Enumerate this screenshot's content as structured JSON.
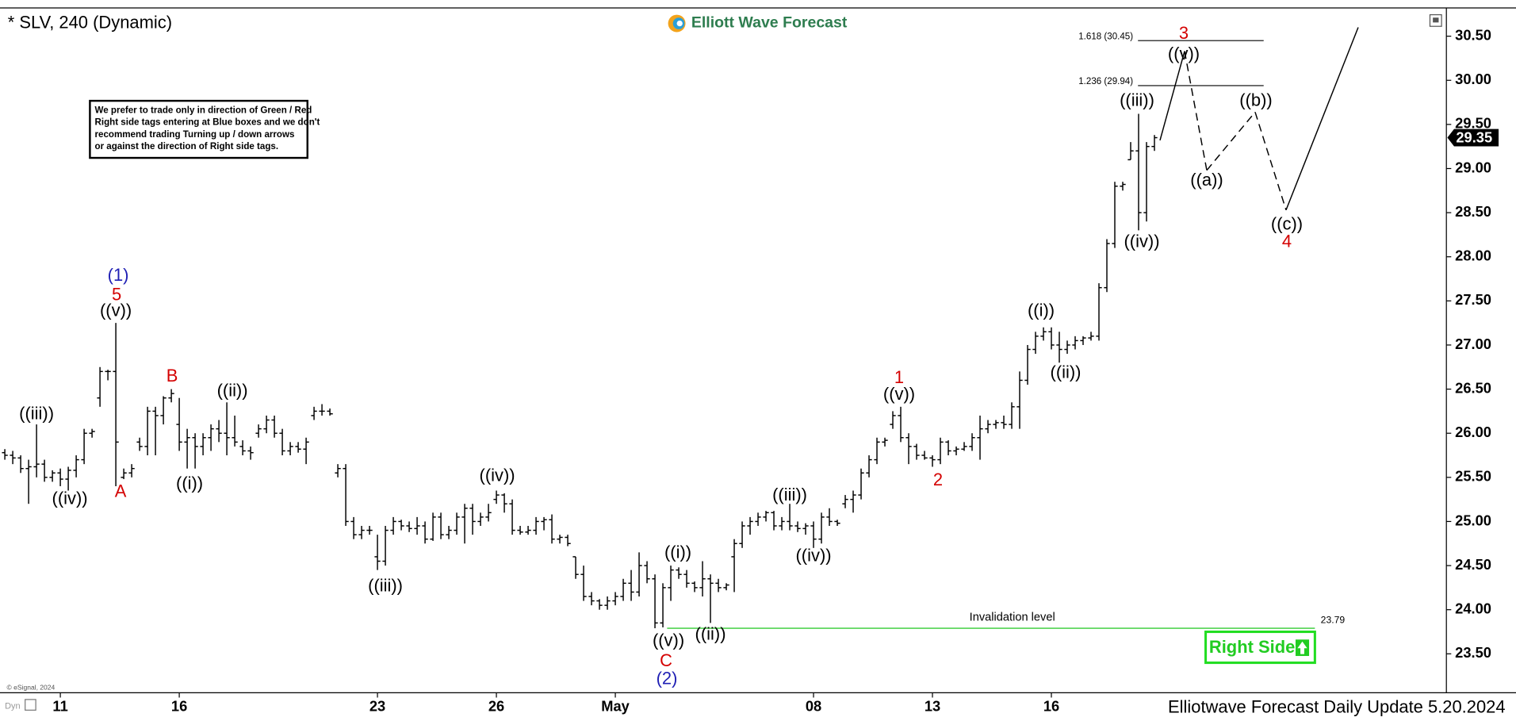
{
  "chart_data": {
    "type": "ohlc",
    "title": "* SLV, 240 (Dynamic)",
    "brand": "Elliott Wave Forecast",
    "footer": "Elliotwave Forecast Daily Update 5.20.2024",
    "copyright": "© eSignal, 2024",
    "dyn_label": "Dyn",
    "note_lines": [
      "We prefer to trade only in direction of Green / Red",
      "Right side tags entering at Blue boxes and we don't",
      "recommend trading Turning up / down arrows",
      "or against the direction of Right side tags."
    ],
    "right_side_tag": "Right Side",
    "bar_color": "#000000",
    "xlim": [
      -0.61,
      181.7
    ],
    "ylim": [
      23.07,
      30.82
    ],
    "xticks": [
      {
        "value": 7,
        "label": "11"
      },
      {
        "value": 22,
        "label": "16"
      },
      {
        "value": 47,
        "label": "23"
      },
      {
        "value": 62,
        "label": "26"
      },
      {
        "value": 77,
        "label": "May"
      },
      {
        "value": 102,
        "label": "08"
      },
      {
        "value": 117,
        "label": "13"
      },
      {
        "value": 132,
        "label": "16"
      }
    ],
    "yticks": [
      {
        "value": 23.5,
        "label": "23.50"
      },
      {
        "value": 24,
        "label": "24.00"
      },
      {
        "value": 24.5,
        "label": "24.50"
      },
      {
        "value": 25,
        "label": "25.00"
      },
      {
        "value": 25.5,
        "label": "25.50"
      },
      {
        "value": 26,
        "label": "26.00"
      },
      {
        "value": 26.5,
        "label": "26.50"
      },
      {
        "value": 27,
        "label": "27.00"
      },
      {
        "value": 27.5,
        "label": "27.50"
      },
      {
        "value": 28,
        "label": "28.00"
      },
      {
        "value": 28.5,
        "label": "28.50"
      },
      {
        "value": 29,
        "label": "29.00"
      },
      {
        "value": 29.5,
        "label": "29.50"
      },
      {
        "value": 30,
        "label": "30.00"
      },
      {
        "value": 30.5,
        "label": "30.50"
      }
    ],
    "ohlc": [
      [
        25.78,
        25.82,
        25.7,
        25.75
      ],
      [
        25.75,
        25.8,
        25.65,
        25.72
      ],
      [
        25.72,
        25.75,
        25.55,
        25.6
      ],
      [
        25.6,
        25.7,
        25.2,
        25.62
      ],
      [
        25.62,
        26.1,
        25.5,
        25.65
      ],
      [
        25.65,
        25.7,
        25.45,
        25.5
      ],
      [
        25.5,
        25.58,
        25.45,
        25.55
      ],
      [
        25.55,
        25.6,
        25.4,
        25.48
      ],
      [
        25.48,
        25.62,
        25.35,
        25.58
      ],
      [
        25.58,
        25.75,
        25.5,
        25.7
      ],
      [
        25.7,
        26.05,
        25.65,
        26.0
      ],
      [
        26.0,
        26.05,
        25.95,
        26.02
      ],
      [
        26.4,
        26.75,
        26.3,
        26.7
      ],
      [
        26.7,
        26.72,
        26.6,
        26.7
      ],
      [
        26.7,
        27.25,
        25.4,
        25.9
      ],
      [
        25.5,
        25.6,
        25.48,
        25.55
      ],
      [
        25.55,
        25.65,
        25.5,
        25.6
      ],
      [
        25.9,
        25.95,
        25.8,
        25.85
      ],
      [
        25.85,
        26.3,
        25.75,
        26.25
      ],
      [
        26.25,
        26.3,
        25.75,
        26.2
      ],
      [
        26.2,
        26.42,
        26.1,
        26.4
      ],
      [
        26.4,
        26.5,
        26.35,
        26.45
      ],
      [
        26.1,
        26.4,
        25.8,
        25.9
      ],
      [
        25.9,
        26.05,
        25.6,
        25.95
      ],
      [
        25.95,
        26.0,
        25.6,
        25.85
      ],
      [
        25.85,
        26.0,
        25.75,
        25.95
      ],
      [
        25.95,
        26.1,
        25.8,
        26.05
      ],
      [
        26.05,
        26.15,
        25.9,
        26.0
      ],
      [
        26.0,
        26.35,
        25.75,
        25.95
      ],
      [
        25.95,
        26.2,
        25.85,
        25.9
      ],
      [
        25.85,
        25.92,
        25.75,
        25.8
      ],
      [
        25.8,
        25.85,
        25.7,
        25.78
      ],
      [
        26.0,
        26.1,
        25.95,
        26.05
      ],
      [
        26.05,
        26.2,
        26.0,
        26.15
      ],
      [
        26.15,
        26.2,
        25.95,
        26.0
      ],
      [
        26.0,
        26.05,
        25.75,
        25.8
      ],
      [
        25.8,
        25.9,
        25.75,
        25.85
      ],
      [
        25.85,
        25.9,
        25.78,
        25.82
      ],
      [
        25.82,
        25.95,
        25.65,
        25.9
      ],
      [
        26.2,
        26.3,
        26.15,
        26.25
      ],
      [
        26.25,
        26.33,
        26.2,
        26.25
      ],
      [
        26.25,
        26.28,
        26.2,
        26.22
      ],
      [
        25.55,
        25.65,
        25.5,
        25.6
      ],
      [
        25.6,
        25.65,
        24.95,
        25.0
      ],
      [
        25.0,
        25.05,
        24.8,
        24.85
      ],
      [
        24.85,
        24.95,
        24.8,
        24.9
      ],
      [
        24.9,
        24.95,
        24.85,
        24.9
      ],
      [
        24.6,
        24.85,
        24.45,
        24.55
      ],
      [
        24.55,
        24.95,
        24.5,
        24.9
      ],
      [
        24.9,
        25.05,
        24.85,
        25.0
      ],
      [
        25.0,
        25.02,
        24.9,
        24.95
      ],
      [
        24.95,
        25.0,
        24.88,
        24.92
      ],
      [
        24.92,
        25.05,
        24.85,
        24.95
      ],
      [
        24.95,
        25.0,
        24.75,
        24.8
      ],
      [
        24.8,
        25.1,
        24.78,
        25.05
      ],
      [
        25.05,
        25.1,
        24.8,
        24.85
      ],
      [
        24.85,
        24.95,
        24.8,
        24.9
      ],
      [
        24.9,
        25.1,
        24.85,
        25.05
      ],
      [
        25.05,
        25.2,
        24.75,
        25.15
      ],
      [
        25.15,
        25.2,
        24.85,
        25.0
      ],
      [
        25.0,
        25.1,
        24.95,
        25.05
      ],
      [
        25.05,
        25.2,
        25.0,
        25.1
      ],
      [
        25.25,
        25.35,
        25.2,
        25.3
      ],
      [
        25.3,
        25.32,
        25.1,
        25.2
      ],
      [
        25.2,
        25.25,
        24.85,
        24.9
      ],
      [
        24.9,
        24.95,
        24.85,
        24.88
      ],
      [
        24.88,
        24.95,
        24.85,
        24.9
      ],
      [
        24.9,
        25.05,
        24.85,
        25.0
      ],
      [
        25.0,
        25.05,
        24.9,
        25.02
      ],
      [
        25.02,
        25.08,
        24.75,
        24.8
      ],
      [
        24.8,
        24.85,
        24.75,
        24.82
      ],
      [
        24.82,
        24.85,
        24.72,
        24.75
      ],
      [
        24.6,
        24.6,
        24.35,
        24.4
      ],
      [
        24.4,
        24.5,
        24.1,
        24.15
      ],
      [
        24.15,
        24.2,
        24.05,
        24.1
      ],
      [
        24.1,
        24.12,
        24.0,
        24.05
      ],
      [
        24.05,
        24.15,
        24.0,
        24.1
      ],
      [
        24.1,
        24.2,
        24.05,
        24.15
      ],
      [
        24.15,
        24.35,
        24.1,
        24.3
      ],
      [
        24.3,
        24.45,
        24.1,
        24.2
      ],
      [
        24.2,
        24.65,
        24.15,
        24.5
      ],
      [
        24.5,
        24.55,
        24.3,
        24.35
      ],
      [
        24.35,
        24.4,
        23.79,
        23.85
      ],
      [
        23.85,
        24.3,
        23.8,
        24.25
      ],
      [
        24.25,
        24.5,
        24.1,
        24.45
      ],
      [
        24.45,
        24.48,
        24.35,
        24.4
      ],
      [
        24.4,
        24.45,
        24.25,
        24.3
      ],
      [
        24.3,
        24.32,
        24.2,
        24.25
      ],
      [
        24.25,
        24.55,
        24.15,
        24.35
      ],
      [
        24.35,
        24.4,
        23.85,
        24.3
      ],
      [
        24.3,
        24.35,
        24.2,
        24.25
      ],
      [
        24.25,
        24.3,
        24.22,
        24.28
      ],
      [
        24.6,
        24.8,
        24.2,
        24.75
      ],
      [
        24.75,
        25.0,
        24.7,
        24.95
      ],
      [
        24.95,
        25.05,
        24.85,
        25.0
      ],
      [
        25.0,
        25.1,
        24.95,
        25.05
      ],
      [
        25.05,
        25.12,
        25.0,
        25.1
      ],
      [
        25.1,
        25.12,
        24.9,
        24.95
      ],
      [
        24.95,
        25.05,
        24.9,
        25.0
      ],
      [
        25.0,
        25.2,
        24.9,
        24.95
      ],
      [
        24.95,
        25.0,
        24.88,
        24.92
      ],
      [
        24.92,
        24.98,
        24.85,
        24.95
      ],
      [
        24.95,
        25.0,
        24.7,
        24.8
      ],
      [
        24.8,
        25.1,
        24.75,
        25.05
      ],
      [
        25.05,
        25.15,
        24.95,
        25.0
      ],
      [
        25.0,
        25.02,
        24.95,
        24.98
      ],
      [
        25.2,
        25.3,
        25.15,
        25.25
      ],
      [
        25.25,
        25.35,
        25.1,
        25.3
      ],
      [
        25.3,
        25.6,
        25.25,
        25.55
      ],
      [
        25.55,
        25.75,
        25.5,
        25.7
      ],
      [
        25.7,
        25.95,
        25.65,
        25.9
      ],
      [
        25.9,
        25.95,
        25.85,
        25.92
      ],
      [
        26.1,
        26.25,
        26.05,
        26.2
      ],
      [
        26.2,
        26.3,
        25.9,
        25.95
      ],
      [
        25.95,
        26.0,
        25.65,
        25.85
      ],
      [
        25.85,
        25.88,
        25.7,
        25.75
      ],
      [
        25.75,
        25.8,
        25.7,
        25.72
      ],
      [
        25.72,
        25.75,
        25.62,
        25.7
      ],
      [
        25.7,
        25.95,
        25.65,
        25.9
      ],
      [
        25.9,
        25.92,
        25.75,
        25.8
      ],
      [
        25.8,
        25.85,
        25.75,
        25.82
      ],
      [
        25.82,
        25.9,
        25.8,
        25.85
      ],
      [
        25.85,
        26.0,
        25.8,
        25.95
      ],
      [
        25.95,
        26.2,
        25.7,
        26.05
      ],
      [
        26.05,
        26.15,
        26.0,
        26.1
      ],
      [
        26.1,
        26.15,
        26.05,
        26.12
      ],
      [
        26.12,
        26.2,
        26.05,
        26.1
      ],
      [
        26.1,
        26.35,
        26.05,
        26.3
      ],
      [
        26.3,
        26.7,
        26.05,
        26.6
      ],
      [
        26.6,
        27.0,
        26.55,
        26.95
      ],
      [
        26.95,
        27.15,
        26.9,
        27.1
      ],
      [
        27.1,
        27.2,
        27.05,
        27.15
      ],
      [
        27.15,
        27.2,
        26.95,
        27.0
      ],
      [
        27.0,
        27.15,
        26.8,
        26.95
      ],
      [
        26.95,
        27.05,
        26.9,
        27.0
      ],
      [
        27.0,
        27.1,
        26.95,
        27.05
      ],
      [
        27.05,
        27.1,
        27.0,
        27.08
      ],
      [
        27.08,
        27.15,
        27.05,
        27.1
      ],
      [
        27.1,
        27.7,
        27.05,
        27.65
      ],
      [
        27.65,
        28.2,
        27.6,
        28.15
      ],
      [
        28.15,
        28.85,
        28.1,
        28.8
      ],
      [
        28.8,
        28.85,
        28.75,
        28.82
      ],
      [
        29.1,
        29.3,
        29.1,
        29.2
      ],
      [
        29.2,
        29.62,
        28.3,
        28.5
      ],
      [
        28.5,
        29.3,
        28.4,
        29.25
      ],
      [
        29.25,
        29.38,
        29.2,
        29.35
      ]
    ],
    "fib_levels": [
      {
        "label": "1.618 (30.45)",
        "value": 30.45
      },
      {
        "label": "1.236 (29.94)",
        "value": 29.94
      }
    ],
    "invalidation": {
      "label": "Invalidation level",
      "value": 23.79,
      "color": "#33cc33"
    },
    "projection": {
      "x": [
        145.7,
        148.8,
        151.6,
        157.7,
        161.6,
        170.7
      ],
      "y": [
        29.32,
        30.33,
        28.98,
        29.64,
        28.53,
        30.6
      ],
      "dashed": [
        false,
        true,
        true,
        true,
        false
      ]
    },
    "waves": [
      {
        "text": "((iii))",
        "x": 4.0,
        "y": 26.21,
        "color": "#000000"
      },
      {
        "text": "((iv))",
        "x": 8.2,
        "y": 25.25,
        "color": "#000000"
      },
      {
        "text": "(1)",
        "x": 14.3,
        "y": 27.78,
        "color": "#1f1fb4"
      },
      {
        "text": "5",
        "x": 14.1,
        "y": 27.56,
        "color": "#d40000"
      },
      {
        "text": "((v))",
        "x": 14.0,
        "y": 27.38,
        "color": "#000000"
      },
      {
        "text": "A",
        "x": 14.6,
        "y": 25.33,
        "color": "#d40000"
      },
      {
        "text": "B",
        "x": 21.1,
        "y": 26.64,
        "color": "#d40000"
      },
      {
        "text": "((i))",
        "x": 23.3,
        "y": 25.42,
        "color": "#000000"
      },
      {
        "text": "((ii))",
        "x": 28.7,
        "y": 26.47,
        "color": "#000000"
      },
      {
        "text": "((iii))",
        "x": 48.0,
        "y": 24.26,
        "color": "#000000"
      },
      {
        "text": "((iv))",
        "x": 62.1,
        "y": 25.51,
        "color": "#000000"
      },
      {
        "text": "((i))",
        "x": 84.9,
        "y": 24.64,
        "color": "#000000"
      },
      {
        "text": "((v))",
        "x": 83.7,
        "y": 23.64,
        "color": "#000000"
      },
      {
        "text": "C",
        "x": 83.4,
        "y": 23.41,
        "color": "#d40000"
      },
      {
        "text": "(2)",
        "x": 83.5,
        "y": 23.21,
        "color": "#1f1fb4"
      },
      {
        "text": "((ii))",
        "x": 89.0,
        "y": 23.71,
        "color": "#000000"
      },
      {
        "text": "((iii))",
        "x": 99.0,
        "y": 25.29,
        "color": "#000000"
      },
      {
        "text": "((iv))",
        "x": 102.0,
        "y": 24.6,
        "color": "#000000"
      },
      {
        "text": "1",
        "x": 112.8,
        "y": 26.62,
        "color": "#d40000"
      },
      {
        "text": "((v))",
        "x": 112.8,
        "y": 26.43,
        "color": "#000000"
      },
      {
        "text": "2",
        "x": 117.7,
        "y": 25.46,
        "color": "#d40000"
      },
      {
        "text": "((i))",
        "x": 130.7,
        "y": 27.38,
        "color": "#000000"
      },
      {
        "text": "((ii))",
        "x": 133.8,
        "y": 26.68,
        "color": "#000000"
      },
      {
        "text": "((iii))",
        "x": 142.8,
        "y": 29.76,
        "color": "#000000"
      },
      {
        "text": "((iv))",
        "x": 143.4,
        "y": 28.16,
        "color": "#000000"
      },
      {
        "text": "3",
        "x": 148.7,
        "y": 30.52,
        "color": "#d40000"
      },
      {
        "text": "((v))",
        "x": 148.7,
        "y": 30.29,
        "color": "#000000"
      },
      {
        "text": "((a))",
        "x": 151.6,
        "y": 28.86,
        "color": "#000000"
      },
      {
        "text": "((b))",
        "x": 157.8,
        "y": 29.76,
        "color": "#000000"
      },
      {
        "text": "((c))",
        "x": 161.7,
        "y": 28.36,
        "color": "#000000"
      },
      {
        "text": "4",
        "x": 161.7,
        "y": 28.16,
        "color": "#d40000"
      }
    ]
  }
}
